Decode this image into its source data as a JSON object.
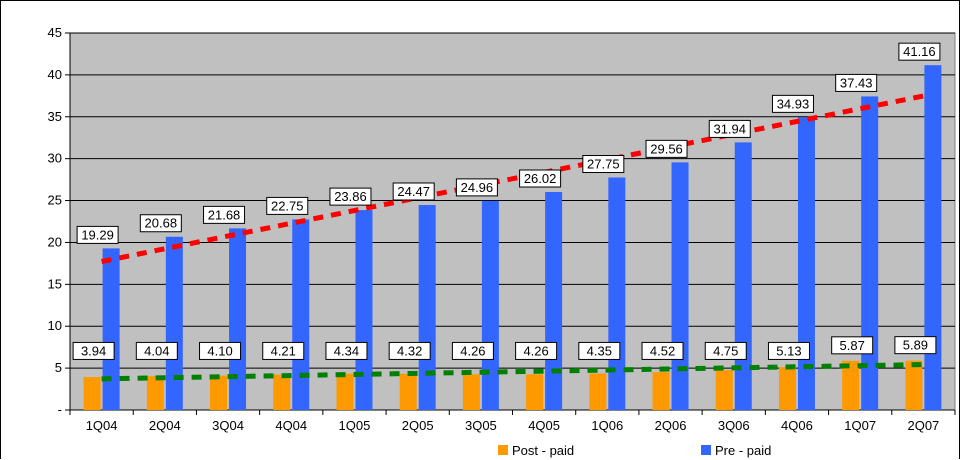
{
  "chart_data": {
    "type": "bar",
    "categories": [
      "1Q04",
      "2Q04",
      "3Q04",
      "4Q04",
      "1Q05",
      "2Q05",
      "3Q05",
      "4Q05",
      "1Q06",
      "2Q06",
      "3Q06",
      "4Q06",
      "1Q07",
      "2Q07"
    ],
    "series": [
      {
        "name": "Post - paid",
        "color": "#FF9900",
        "values": [
          3.94,
          4.04,
          4.1,
          4.21,
          4.34,
          4.32,
          4.26,
          4.26,
          4.35,
          4.52,
          4.75,
          5.13,
          5.87,
          5.89
        ],
        "labels": [
          "3.94",
          "4.04",
          "4.10",
          "4.21",
          "4.34",
          "4.32",
          "4.26",
          "4.26",
          "4.35",
          "4.52",
          "4.75",
          "5.13",
          "5.87",
          "5.89"
        ]
      },
      {
        "name": "Pre - paid",
        "color": "#3366FF",
        "values": [
          19.29,
          20.68,
          21.68,
          22.75,
          23.86,
          24.47,
          24.96,
          26.02,
          27.75,
          29.56,
          31.94,
          34.93,
          37.43,
          41.16
        ],
        "labels": [
          "19.29",
          "20.68",
          "21.68",
          "22.75",
          "23.86",
          "24.47",
          "24.96",
          "26.02",
          "27.75",
          "29.56",
          "31.94",
          "34.93",
          "37.43",
          "41.16"
        ]
      }
    ],
    "trendlines": [
      {
        "series": "Post - paid",
        "color": "#008000",
        "style": "dashed"
      },
      {
        "series": "Pre - paid",
        "color": "#FF0000",
        "style": "dashed"
      }
    ],
    "ylim": [
      0,
      45
    ],
    "yticks": [
      0,
      5,
      10,
      15,
      20,
      25,
      30,
      35,
      40,
      45
    ],
    "ytick_labels": [
      "-",
      "5",
      "10",
      "15",
      "20",
      "25",
      "30",
      "35",
      "40",
      "45"
    ],
    "grid": true,
    "legend_position": "bottom",
    "plot_background": "#C0C0C0"
  }
}
